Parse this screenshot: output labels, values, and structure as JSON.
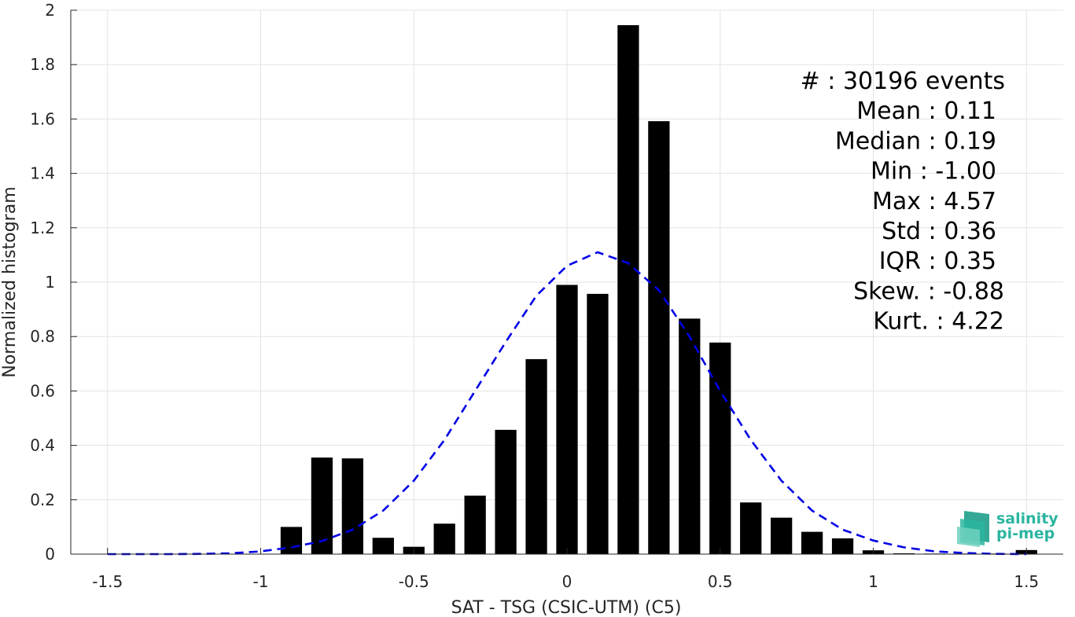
{
  "chart_data": {
    "type": "bar",
    "xlabel": "SAT - TSG (CSIC-UTM) (C5)",
    "ylabel": "Normalized histogram",
    "xlim": [
      -1.62,
      1.62
    ],
    "ylim": [
      0,
      2
    ],
    "xticks": [
      -1.5,
      -1,
      -0.5,
      0,
      0.5,
      1,
      1.5
    ],
    "xtick_labels": [
      "-1.5",
      "-1",
      "-0.5",
      "0",
      "0.5",
      "1",
      "1.5"
    ],
    "yticks": [
      0,
      0.2,
      0.4,
      0.6,
      0.8,
      1,
      1.2,
      1.4,
      1.6,
      1.8,
      2
    ],
    "ytick_labels": [
      "0",
      "0.2",
      "0.4",
      "0.6",
      "0.8",
      "1",
      "1.2",
      "1.4",
      "1.6",
      "1.8",
      "2"
    ],
    "grid": true,
    "bar_width": 0.07,
    "bars": {
      "x": [
        -0.9,
        -0.8,
        -0.7,
        -0.6,
        -0.5,
        -0.4,
        -0.3,
        -0.2,
        -0.1,
        0.0,
        0.1,
        0.2,
        0.3,
        0.4,
        0.5,
        0.6,
        0.7,
        0.8,
        0.9,
        1.0,
        1.1,
        1.2,
        1.3,
        1.4,
        1.5
      ],
      "values": [
        0.1,
        0.355,
        0.352,
        0.06,
        0.027,
        0.112,
        0.215,
        0.457,
        0.717,
        0.99,
        0.957,
        1.945,
        1.592,
        0.866,
        0.778,
        0.19,
        0.134,
        0.082,
        0.058,
        0.014,
        0.003,
        0.002,
        0.002,
        0.002,
        0.015
      ],
      "color": "#000000"
    },
    "fit_curve": {
      "style": "dashed",
      "color": "#0000e6",
      "x": [
        -1.5,
        -1.4,
        -1.3,
        -1.2,
        -1.1,
        -1.0,
        -0.9,
        -0.8,
        -0.7,
        -0.6,
        -0.5,
        -0.4,
        -0.3,
        -0.2,
        -0.1,
        0.0,
        0.1,
        0.2,
        0.3,
        0.4,
        0.5,
        0.6,
        0.7,
        0.8,
        0.9,
        1.0,
        1.1,
        1.2,
        1.3,
        1.4,
        1.5
      ],
      "y": [
        0.0,
        0.0,
        0.0,
        0.001,
        0.003,
        0.01,
        0.025,
        0.048,
        0.09,
        0.16,
        0.27,
        0.42,
        0.6,
        0.78,
        0.95,
        1.06,
        1.11,
        1.07,
        0.97,
        0.8,
        0.6,
        0.42,
        0.27,
        0.16,
        0.09,
        0.05,
        0.025,
        0.01,
        0.004,
        0.001,
        0.0
      ]
    },
    "stats": [
      {
        "label": "#",
        "sep": " : ",
        "value": "30196 events"
      },
      {
        "label": "Mean",
        "sep": " : ",
        "value": "0.11"
      },
      {
        "label": "Median",
        "sep": " : ",
        "value": "0.19"
      },
      {
        "label": "Min",
        "sep": " : ",
        "value": "-1.00"
      },
      {
        "label": "Max",
        "sep": " : ",
        "value": "4.57"
      },
      {
        "label": "Std",
        "sep": " : ",
        "value": "0.36"
      },
      {
        "label": "IQR",
        "sep": " : ",
        "value": "0.35"
      },
      {
        "label": "Skew.",
        "sep": " : ",
        "value": "-0.88"
      },
      {
        "label": "Kurt.",
        "sep": " : ",
        "value": "4.22"
      }
    ]
  },
  "logo": {
    "line1": "salinity",
    "line2": "pi-mep",
    "color": "#2bb5a0"
  }
}
